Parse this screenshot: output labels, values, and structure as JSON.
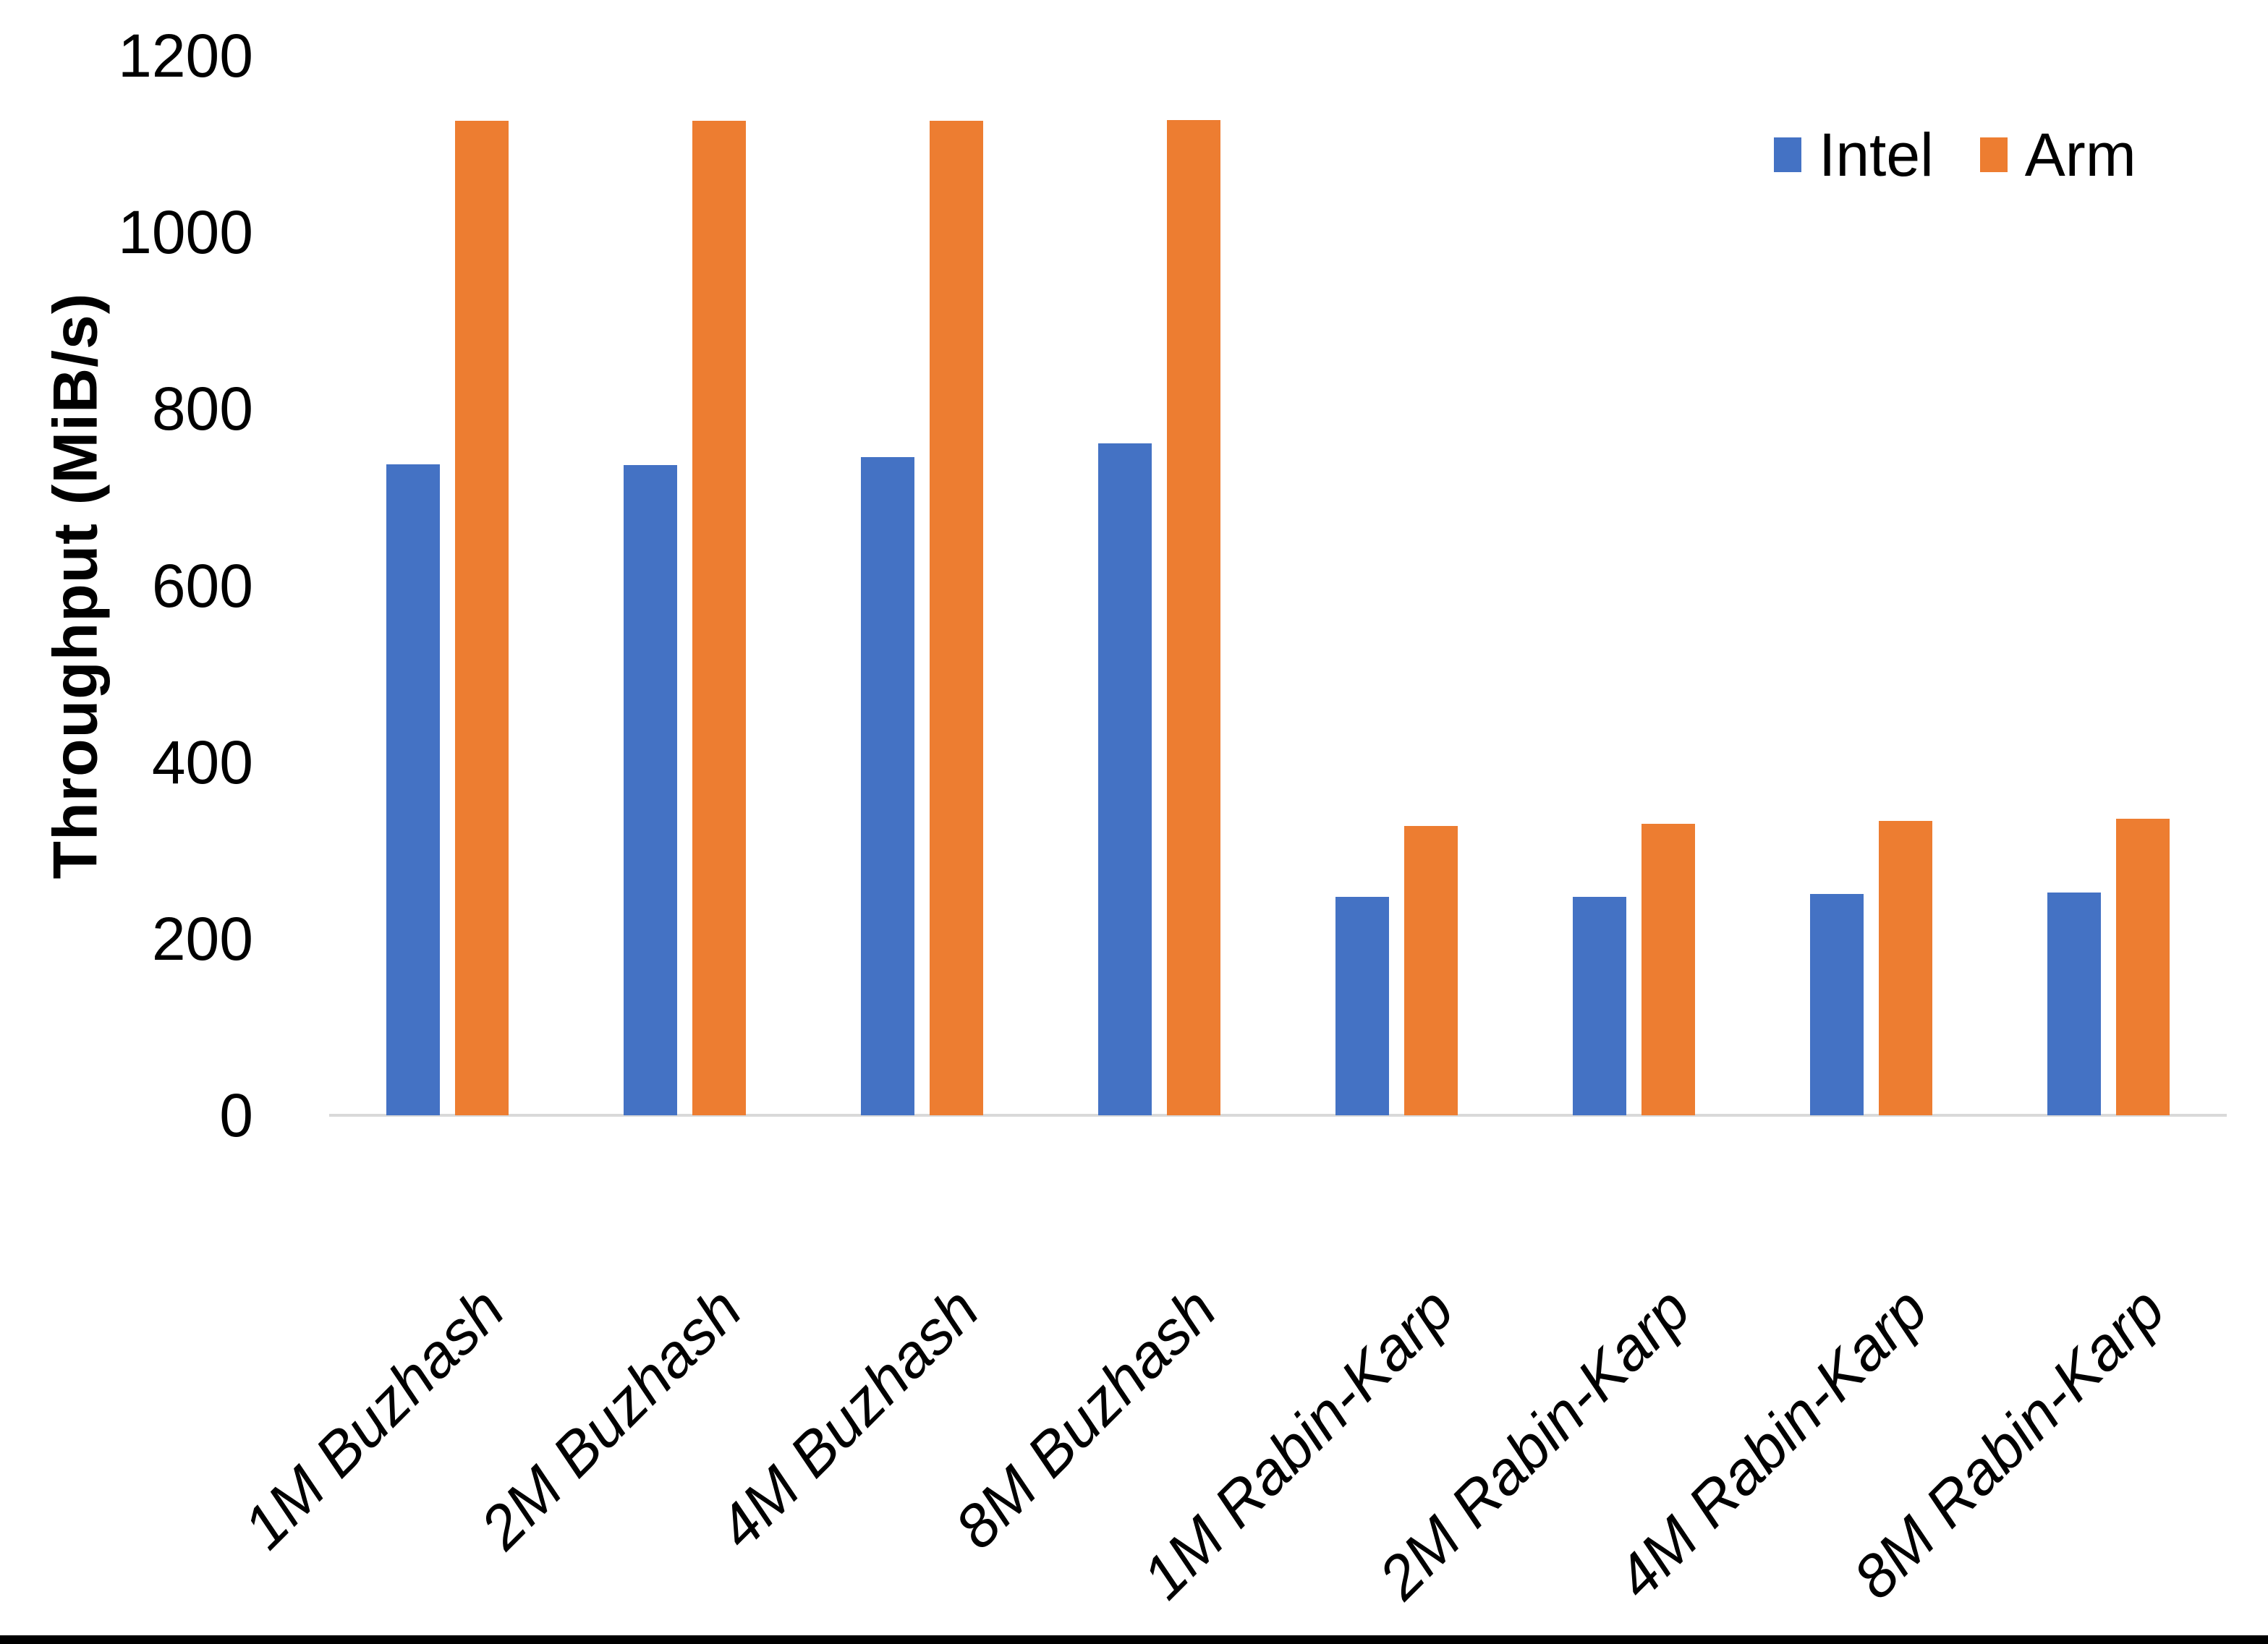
{
  "chart_data": {
    "type": "bar",
    "title": "",
    "xlabel": "",
    "ylabel": "Throughput (MiB/s)",
    "ylim": [
      0,
      1200
    ],
    "yticks": [
      0,
      200,
      400,
      600,
      800,
      1000,
      1200
    ],
    "grid": false,
    "legend_position": "top-right",
    "axis_line_color": "#D9D9D9",
    "text_color": "#000000",
    "categories": [
      "1M Buzhash",
      "2M Buzhash",
      "4M Buzhash",
      "8M Buzhash",
      "1M Rabin-Karp",
      "2M Rabin-Karp",
      "4M Rabin-Karp",
      "8M Rabin-Karp"
    ],
    "series": [
      {
        "name": "Intel",
        "color": "#4472C4",
        "values": [
          737,
          736,
          745,
          761,
          247,
          247,
          251,
          252
        ]
      },
      {
        "name": "Arm",
        "color": "#ED7D31",
        "values": [
          1126,
          1126,
          1126,
          1127,
          328,
          330,
          333,
          336
        ]
      }
    ]
  },
  "legend": {
    "intel_label": "Intel",
    "arm_label": "Arm",
    "intel_swatch": "intel-series-swatch",
    "arm_swatch": "arm-series-swatch"
  }
}
